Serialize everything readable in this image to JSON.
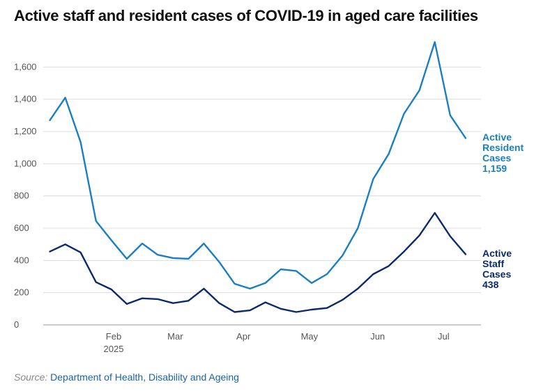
{
  "title": "Active staff and resident cases of COVID-19 in aged care facilities",
  "source": {
    "label": "Source:",
    "value": "Department of Health, Disability and Ageing"
  },
  "colors": {
    "resident": "#1a7fc1",
    "staff": "#0b2a6b"
  },
  "chart_data": {
    "type": "line",
    "title": "Active staff and resident cases of COVID-19 in aged care facilities",
    "xlabel": "",
    "ylabel": "",
    "ylim": [
      0,
      1800
    ],
    "yticks": [
      0,
      200,
      400,
      600,
      800,
      1000,
      1200,
      1400,
      1600
    ],
    "grid": true,
    "x": [
      "2025-01-03",
      "2025-01-10",
      "2025-01-17",
      "2025-01-24",
      "2025-01-31",
      "2025-02-07",
      "2025-02-14",
      "2025-02-21",
      "2025-02-28",
      "2025-03-07",
      "2025-03-14",
      "2025-03-21",
      "2025-03-28",
      "2025-04-04",
      "2025-04-11",
      "2025-04-18",
      "2025-04-25",
      "2025-05-02",
      "2025-05-09",
      "2025-05-16",
      "2025-05-23",
      "2025-05-30",
      "2025-06-06",
      "2025-06-13",
      "2025-06-20",
      "2025-06-27",
      "2025-07-04",
      "2025-07-11"
    ],
    "xrange": [
      "2024-12-31",
      "2025-07-18"
    ],
    "xticks": [
      {
        "date": "2025-02-01",
        "label": "Feb",
        "sublabel": "2025"
      },
      {
        "date": "2025-03-01",
        "label": "Mar",
        "sublabel": ""
      },
      {
        "date": "2025-04-01",
        "label": "Apr",
        "sublabel": ""
      },
      {
        "date": "2025-05-01",
        "label": "May",
        "sublabel": ""
      },
      {
        "date": "2025-06-01",
        "label": "Jun",
        "sublabel": ""
      },
      {
        "date": "2025-07-01",
        "label": "Jul",
        "sublabel": ""
      }
    ],
    "series": [
      {
        "key": "resident",
        "name": "Active Resident Cases",
        "label_lines": [
          "Active",
          "Resident",
          "Cases"
        ],
        "last_value_label": "1,159",
        "values": [
          1270,
          1410,
          1135,
          645,
          525,
          410,
          505,
          435,
          415,
          410,
          505,
          390,
          255,
          225,
          260,
          345,
          335,
          260,
          315,
          430,
          600,
          905,
          1060,
          1310,
          1455,
          1755,
          1300,
          1159
        ]
      },
      {
        "key": "staff",
        "name": "Active Staff Cases",
        "label_lines": [
          "Active",
          "Staff",
          "Cases"
        ],
        "last_value_label": "438",
        "values": [
          455,
          500,
          450,
          265,
          220,
          130,
          165,
          160,
          135,
          150,
          225,
          135,
          80,
          90,
          140,
          100,
          80,
          95,
          105,
          155,
          225,
          315,
          365,
          455,
          555,
          695,
          550,
          438
        ]
      }
    ]
  }
}
